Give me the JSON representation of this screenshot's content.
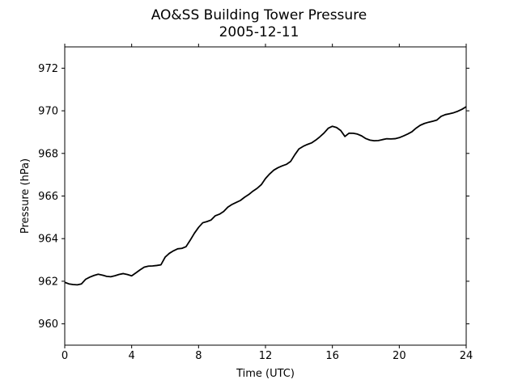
{
  "chart_data": {
    "type": "line",
    "title": "AO&SS Building Tower Pressure",
    "subtitle": "2005-12-11",
    "xlabel": "Time (UTC)",
    "ylabel": "Pressure (hPa)",
    "xlim": [
      0,
      24
    ],
    "ylim": [
      959,
      973
    ],
    "xticks": [
      0,
      4,
      8,
      12,
      16,
      20,
      24
    ],
    "yticks": [
      960,
      962,
      964,
      966,
      968,
      970,
      972
    ],
    "grid": false,
    "legend": "none",
    "line_color": "#000000",
    "series": [
      {
        "x": [
          0,
          0.25,
          0.5,
          0.75,
          1.0,
          1.25,
          1.5,
          1.75,
          2.0,
          2.25,
          2.5,
          2.75,
          3.0,
          3.25,
          3.5,
          3.75,
          4.0,
          4.25,
          4.5,
          4.75,
          5.0,
          5.25,
          5.5,
          5.75,
          6.0,
          6.25,
          6.5,
          6.75,
          7.0,
          7.25,
          7.5,
          7.75,
          8.0,
          8.25,
          8.5,
          8.75,
          9.0,
          9.25,
          9.5,
          9.75,
          10.0,
          10.25,
          10.5,
          10.75,
          11.0,
          11.25,
          11.5,
          11.75,
          12.0,
          12.25,
          12.5,
          12.75,
          13.0,
          13.25,
          13.5,
          13.75,
          14.0,
          14.25,
          14.5,
          14.75,
          15.0,
          15.25,
          15.5,
          15.75,
          16.0,
          16.25,
          16.5,
          16.75,
          17.0,
          17.25,
          17.5,
          17.75,
          18.0,
          18.25,
          18.5,
          18.75,
          19.0,
          19.25,
          19.5,
          19.75,
          20.0,
          20.25,
          20.5,
          20.75,
          21.0,
          21.25,
          21.5,
          21.75,
          22.0,
          22.25,
          22.5,
          22.75,
          23.0,
          23.25,
          23.5,
          23.75,
          24.0
        ],
        "values": [
          961.95,
          961.85,
          961.82,
          961.83,
          961.9,
          962.12,
          962.2,
          962.25,
          962.3,
          962.28,
          962.25,
          962.24,
          962.27,
          962.3,
          962.33,
          962.3,
          962.27,
          962.42,
          962.55,
          962.65,
          962.68,
          962.7,
          962.75,
          962.8,
          963.15,
          963.3,
          963.4,
          963.5,
          963.55,
          963.65,
          963.95,
          964.25,
          964.5,
          964.72,
          964.8,
          964.9,
          965.1,
          965.15,
          965.25,
          965.45,
          965.6,
          965.72,
          965.82,
          965.95,
          966.05,
          966.2,
          966.35,
          966.55,
          966.85,
          967.05,
          967.2,
          967.3,
          967.4,
          967.5,
          967.65,
          967.95,
          968.2,
          968.3,
          968.4,
          968.5,
          968.65,
          968.8,
          968.95,
          969.15,
          969.25,
          969.22,
          969.1,
          968.82,
          968.95,
          968.92,
          968.88,
          968.82,
          968.72,
          968.65,
          968.6,
          968.58,
          968.62,
          968.68,
          968.7,
          968.72,
          968.75,
          968.8,
          968.88,
          969.0,
          969.2,
          969.35,
          969.42,
          969.45,
          969.48,
          969.55,
          969.75,
          969.85,
          969.88,
          969.9,
          969.95,
          970.05,
          970.2
        ]
      }
    ]
  }
}
